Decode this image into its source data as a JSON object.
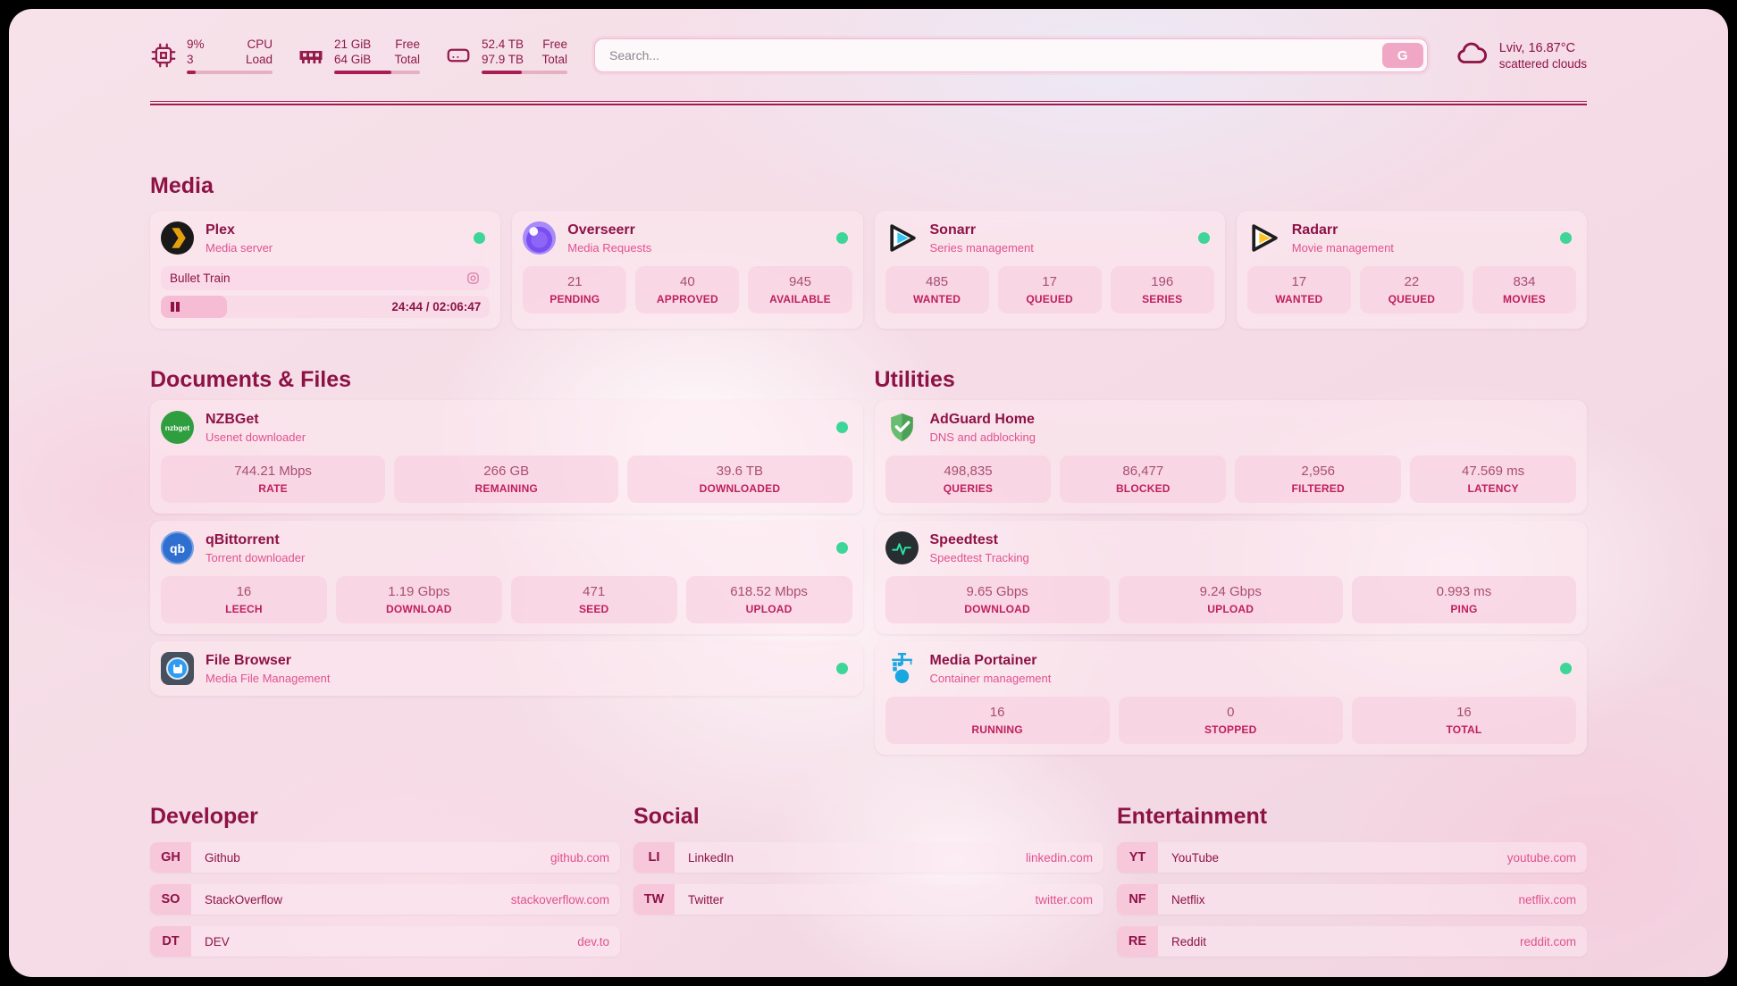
{
  "header": {
    "resources": [
      {
        "value1": "9%",
        "label1": "CPU",
        "value2": "3",
        "label2": "Load",
        "percent": 10
      },
      {
        "value1": "21 GiB",
        "label1": "Free",
        "value2": "64 GiB",
        "label2": "Total",
        "percent": 67
      },
      {
        "value1": "52.4 TB",
        "label1": "Free",
        "value2": "97.9 TB",
        "label2": "Total",
        "percent": 47
      }
    ],
    "search": {
      "placeholder": "Search...",
      "button_label": "G"
    },
    "weather": {
      "location_temp": "Lviv, 16.87°C",
      "condition": "scattered clouds"
    }
  },
  "media": {
    "section_title": "Media",
    "cards": [
      {
        "title": "Plex",
        "subtitle": "Media server",
        "online": true,
        "now_playing": {
          "title": "Bullet Train",
          "time": "24:44 / 02:06:47",
          "progress_percent": 20
        }
      },
      {
        "title": "Overseerr",
        "subtitle": "Media Requests",
        "online": true,
        "stats": [
          {
            "value": "21",
            "label": "PENDING"
          },
          {
            "value": "40",
            "label": "APPROVED"
          },
          {
            "value": "945",
            "label": "AVAILABLE"
          }
        ]
      },
      {
        "title": "Sonarr",
        "subtitle": "Series management",
        "online": true,
        "stats": [
          {
            "value": "485",
            "label": "WANTED"
          },
          {
            "value": "17",
            "label": "QUEUED"
          },
          {
            "value": "196",
            "label": "SERIES"
          }
        ]
      },
      {
        "title": "Radarr",
        "subtitle": "Movie management",
        "online": true,
        "stats": [
          {
            "value": "17",
            "label": "WANTED"
          },
          {
            "value": "22",
            "label": "QUEUED"
          },
          {
            "value": "834",
            "label": "MOVIES"
          }
        ]
      }
    ]
  },
  "documents": {
    "section_title": "Documents & Files",
    "cards": [
      {
        "title": "NZBGet",
        "subtitle": "Usenet downloader",
        "online": true,
        "stats": [
          {
            "value": "744.21 Mbps",
            "label": "RATE"
          },
          {
            "value": "266 GB",
            "label": "REMAINING"
          },
          {
            "value": "39.6 TB",
            "label": "DOWNLOADED"
          }
        ]
      },
      {
        "title": "qBittorrent",
        "subtitle": "Torrent downloader",
        "online": true,
        "stats": [
          {
            "value": "16",
            "label": "LEECH"
          },
          {
            "value": "1.19 Gbps",
            "label": "DOWNLOAD"
          },
          {
            "value": "471",
            "label": "SEED"
          },
          {
            "value": "618.52 Mbps",
            "label": "UPLOAD"
          }
        ]
      },
      {
        "title": "File Browser",
        "subtitle": "Media File Management",
        "online": true
      }
    ]
  },
  "utilities": {
    "section_title": "Utilities",
    "cards": [
      {
        "title": "AdGuard Home",
        "subtitle": "DNS and adblocking",
        "stats": [
          {
            "value": "498,835",
            "label": "QUERIES"
          },
          {
            "value": "86,477",
            "label": "BLOCKED"
          },
          {
            "value": "2,956",
            "label": "FILTERED"
          },
          {
            "value": "47.569 ms",
            "label": "LATENCY"
          }
        ]
      },
      {
        "title": "Speedtest",
        "subtitle": "Speedtest Tracking",
        "stats": [
          {
            "value": "9.65 Gbps",
            "label": "DOWNLOAD"
          },
          {
            "value": "9.24 Gbps",
            "label": "UPLOAD"
          },
          {
            "value": "0.993 ms",
            "label": "PING"
          }
        ]
      },
      {
        "title": "Media Portainer",
        "subtitle": "Container management",
        "online": true,
        "stats": [
          {
            "value": "16",
            "label": "RUNNING"
          },
          {
            "value": "0",
            "label": "STOPPED"
          },
          {
            "value": "16",
            "label": "TOTAL"
          }
        ]
      }
    ]
  },
  "bookmarks": {
    "groups": [
      {
        "title": "Developer",
        "links": [
          {
            "abbr": "GH",
            "name": "Github",
            "url": "github.com"
          },
          {
            "abbr": "SO",
            "name": "StackOverflow",
            "url": "stackoverflow.com"
          },
          {
            "abbr": "DT",
            "name": "DEV",
            "url": "dev.to"
          }
        ]
      },
      {
        "title": "Social",
        "links": [
          {
            "abbr": "LI",
            "name": "LinkedIn",
            "url": "linkedin.com"
          },
          {
            "abbr": "TW",
            "name": "Twitter",
            "url": "twitter.com"
          }
        ]
      },
      {
        "title": "Entertainment",
        "links": [
          {
            "abbr": "YT",
            "name": "YouTube",
            "url": "youtube.com"
          },
          {
            "abbr": "NF",
            "name": "Netflix",
            "url": "netflix.com"
          },
          {
            "abbr": "RE",
            "name": "Reddit",
            "url": "reddit.com"
          }
        ]
      }
    ]
  },
  "colors": {
    "accent": "#9f1945",
    "online_dot": "#3ed598",
    "subtitle_pink": "#e0518f"
  }
}
